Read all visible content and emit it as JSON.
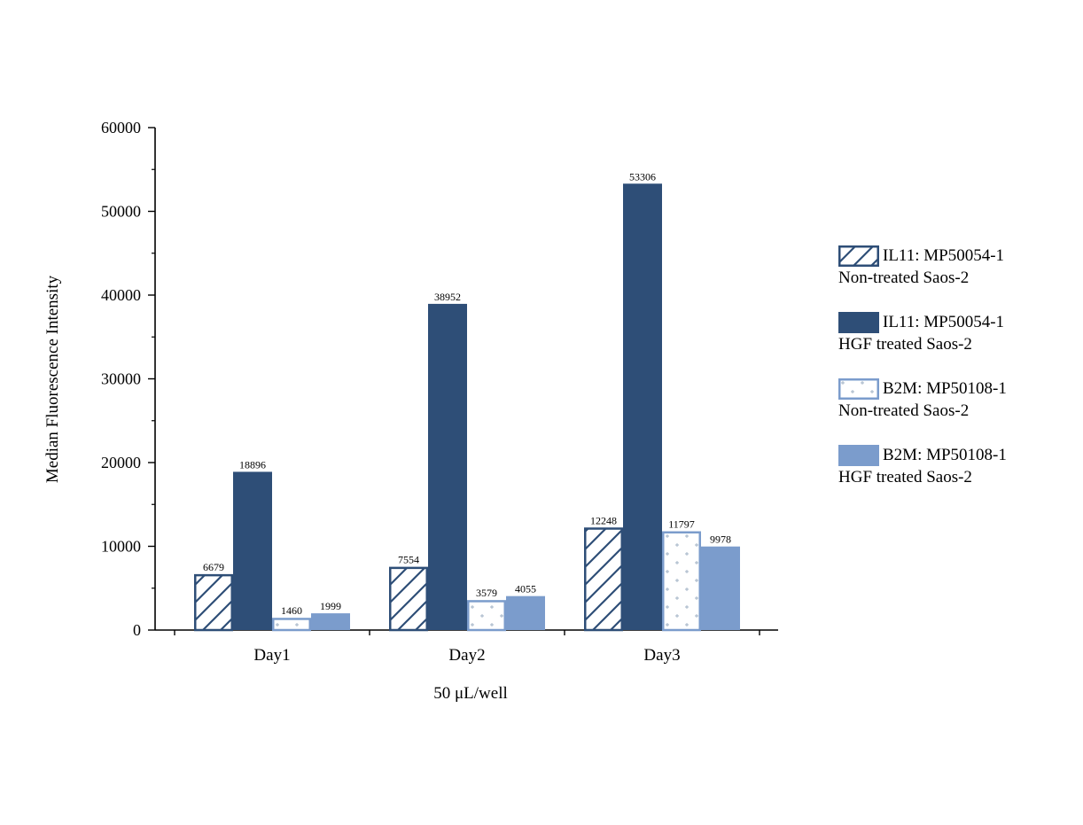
{
  "chart_data": {
    "type": "bar",
    "categories": [
      "Day1",
      "Day2",
      "Day3"
    ],
    "xlabel": "50 μL/well",
    "ylabel": "Median Fluorescence Intensity",
    "ylim": [
      0,
      60000
    ],
    "yticks": [
      0,
      10000,
      20000,
      30000,
      40000,
      50000,
      60000
    ],
    "ytick_labels": [
      "0",
      "10000",
      "20000",
      "30000",
      "40000",
      "50000",
      "60000"
    ],
    "legend_position": "right",
    "series": [
      {
        "name": "IL11: MP50054-1",
        "subname": "Non-treated Saos-2",
        "values": [
          6679,
          7554,
          12248
        ],
        "labels": [
          "6679",
          "7554",
          "12248"
        ],
        "color": "#2e4e77",
        "pattern": "hatch"
      },
      {
        "name": "IL11: MP50054-1",
        "subname": "HGF treated Saos-2",
        "values": [
          18896,
          38952,
          53306
        ],
        "labels": [
          "18896",
          "38952",
          "53306"
        ],
        "color": "#2e4e77",
        "pattern": "solid"
      },
      {
        "name": "B2M: MP50108-1",
        "subname": "Non-treated Saos-2",
        "values": [
          1460,
          3579,
          11797
        ],
        "labels": [
          "1460",
          "3579",
          "11797"
        ],
        "color": "#7b9ccc",
        "pattern": "dots"
      },
      {
        "name": "B2M: MP50108-1",
        "subname": "HGF treated Saos-2",
        "values": [
          1999,
          4055,
          9978
        ],
        "labels": [
          "1999",
          "4055",
          "9978"
        ],
        "color": "#7b9ccc",
        "pattern": "solid"
      }
    ]
  }
}
